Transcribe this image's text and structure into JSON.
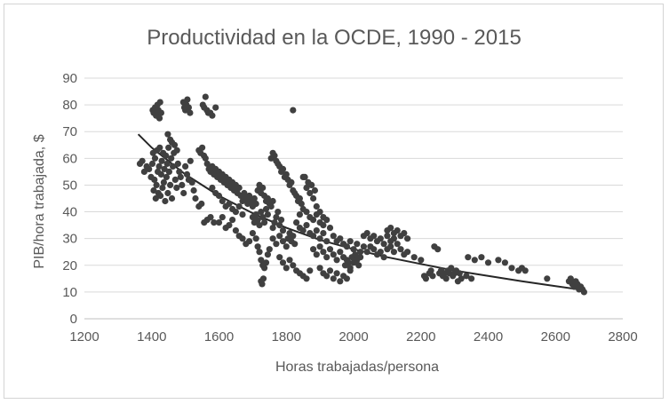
{
  "chart_data": {
    "type": "scatter",
    "title": "Productividad en la OCDE, 1990 - 2015",
    "xlabel": "Horas trabajadas/persona",
    "ylabel": "PIB/hora trabajada, $",
    "xlim": [
      1200,
      2800
    ],
    "ylim": [
      0,
      90
    ],
    "xticks": [
      1200,
      1400,
      1600,
      1800,
      2000,
      2200,
      2400,
      2600,
      2800
    ],
    "yticks": [
      0,
      10,
      20,
      30,
      40,
      50,
      60,
      70,
      80,
      90
    ],
    "grid": "horizontal",
    "legend": "none",
    "marker_color": "#404040",
    "trend_color": "#262626",
    "trendline": {
      "type": "power",
      "points": [
        [
          1360,
          69
        ],
        [
          1400,
          64
        ],
        [
          1500,
          54
        ],
        [
          1600,
          46
        ],
        [
          1700,
          39.5
        ],
        [
          1800,
          34
        ],
        [
          1900,
          29.5
        ],
        [
          2000,
          26
        ],
        [
          2100,
          23
        ],
        [
          2200,
          20.5
        ],
        [
          2300,
          18
        ],
        [
          2400,
          16
        ],
        [
          2500,
          14
        ],
        [
          2600,
          12.2
        ],
        [
          2680,
          10.8
        ]
      ]
    },
    "points": [
      [
        1365,
        58
      ],
      [
        1372,
        59
      ],
      [
        1378,
        55
      ],
      [
        1385,
        57
      ],
      [
        1392,
        56
      ],
      [
        1398,
        53
      ],
      [
        1402,
        58
      ],
      [
        1404,
        62
      ],
      [
        1406,
        48
      ],
      [
        1408,
        52
      ],
      [
        1410,
        60
      ],
      [
        1412,
        45
      ],
      [
        1414,
        50
      ],
      [
        1416,
        63
      ],
      [
        1418,
        55
      ],
      [
        1420,
        47
      ],
      [
        1422,
        57
      ],
      [
        1424,
        64
      ],
      [
        1426,
        46
      ],
      [
        1428,
        54
      ],
      [
        1430,
        59
      ],
      [
        1432,
        49
      ],
      [
        1434,
        62
      ],
      [
        1436,
        51
      ],
      [
        1438,
        56
      ],
      [
        1440,
        44
      ],
      [
        1442,
        61
      ],
      [
        1444,
        53
      ],
      [
        1446,
        58
      ],
      [
        1448,
        47
      ],
      [
        1450,
        64
      ],
      [
        1452,
        55
      ],
      [
        1455,
        50
      ],
      [
        1458,
        60
      ],
      [
        1460,
        45
      ],
      [
        1463,
        57
      ],
      [
        1466,
        62
      ],
      [
        1470,
        52
      ],
      [
        1474,
        49
      ],
      [
        1478,
        58
      ],
      [
        1482,
        55
      ],
      [
        1486,
        53
      ],
      [
        1490,
        50
      ],
      [
        1495,
        47
      ],
      [
        1500,
        57
      ],
      [
        1505,
        54
      ],
      [
        1510,
        52
      ],
      [
        1515,
        59
      ],
      [
        1520,
        51
      ],
      [
        1525,
        48
      ],
      [
        1403,
        78
      ],
      [
        1406,
        77
      ],
      [
        1410,
        79
      ],
      [
        1413,
        76
      ],
      [
        1417,
        80
      ],
      [
        1420,
        78
      ],
      [
        1423,
        75
      ],
      [
        1425,
        81
      ],
      [
        1428,
        77
      ],
      [
        1494,
        81
      ],
      [
        1497,
        79
      ],
      [
        1500,
        78
      ],
      [
        1503,
        80
      ],
      [
        1506,
        82
      ],
      [
        1510,
        79
      ],
      [
        1514,
        77
      ],
      [
        1552,
        80
      ],
      [
        1556,
        79
      ],
      [
        1560,
        83
      ],
      [
        1564,
        78
      ],
      [
        1568,
        77
      ],
      [
        1574,
        77
      ],
      [
        1580,
        76
      ],
      [
        1590,
        79
      ],
      [
        1820,
        78
      ],
      [
        1448,
        69
      ],
      [
        1455,
        67
      ],
      [
        1460,
        66
      ],
      [
        1468,
        65
      ],
      [
        1475,
        63
      ],
      [
        1540,
        63
      ],
      [
        1545,
        62
      ],
      [
        1550,
        64
      ],
      [
        1555,
        61
      ],
      [
        1560,
        60
      ],
      [
        1530,
        45
      ],
      [
        1540,
        42
      ],
      [
        1548,
        43
      ],
      [
        1556,
        36
      ],
      [
        1565,
        37
      ],
      [
        1575,
        38
      ],
      [
        1585,
        36
      ],
      [
        1565,
        58
      ],
      [
        1570,
        56
      ],
      [
        1575,
        55
      ],
      [
        1580,
        57
      ],
      [
        1585,
        54
      ],
      [
        1590,
        56
      ],
      [
        1595,
        53
      ],
      [
        1600,
        55
      ],
      [
        1605,
        52
      ],
      [
        1610,
        54
      ],
      [
        1615,
        51
      ],
      [
        1620,
        53
      ],
      [
        1625,
        50
      ],
      [
        1630,
        52
      ],
      [
        1635,
        49
      ],
      [
        1640,
        51
      ],
      [
        1645,
        48
      ],
      [
        1650,
        50
      ],
      [
        1655,
        47
      ],
      [
        1660,
        49
      ],
      [
        1580,
        49
      ],
      [
        1590,
        47
      ],
      [
        1600,
        46
      ],
      [
        1610,
        44
      ],
      [
        1620,
        42
      ],
      [
        1630,
        43
      ],
      [
        1640,
        41
      ],
      [
        1650,
        40
      ],
      [
        1660,
        42
      ],
      [
        1670,
        39
      ],
      [
        1600,
        36
      ],
      [
        1610,
        38
      ],
      [
        1620,
        34
      ],
      [
        1630,
        35
      ],
      [
        1640,
        37
      ],
      [
        1650,
        33
      ],
      [
        1660,
        31
      ],
      [
        1670,
        30
      ],
      [
        1680,
        28
      ],
      [
        1690,
        29
      ],
      [
        1665,
        46
      ],
      [
        1670,
        44
      ],
      [
        1675,
        47
      ],
      [
        1680,
        45
      ],
      [
        1685,
        43
      ],
      [
        1690,
        46
      ],
      [
        1695,
        44
      ],
      [
        1700,
        42
      ],
      [
        1705,
        45
      ],
      [
        1710,
        43
      ],
      [
        1700,
        38
      ],
      [
        1705,
        36
      ],
      [
        1710,
        39
      ],
      [
        1715,
        37
      ],
      [
        1720,
        35
      ],
      [
        1725,
        40
      ],
      [
        1730,
        38
      ],
      [
        1735,
        36
      ],
      [
        1740,
        41
      ],
      [
        1745,
        39
      ],
      [
        1715,
        48
      ],
      [
        1720,
        50
      ],
      [
        1725,
        47
      ],
      [
        1730,
        49
      ],
      [
        1735,
        46
      ],
      [
        1740,
        44
      ],
      [
        1745,
        45
      ],
      [
        1750,
        43
      ],
      [
        1755,
        42
      ],
      [
        1760,
        44
      ],
      [
        1700,
        32
      ],
      [
        1710,
        30
      ],
      [
        1715,
        27
      ],
      [
        1720,
        25
      ],
      [
        1725,
        22
      ],
      [
        1730,
        20
      ],
      [
        1735,
        19
      ],
      [
        1740,
        21
      ],
      [
        1745,
        24
      ],
      [
        1750,
        26
      ],
      [
        1725,
        14
      ],
      [
        1728,
        13
      ],
      [
        1732,
        15
      ],
      [
        1760,
        34
      ],
      [
        1765,
        36
      ],
      [
        1770,
        38
      ],
      [
        1775,
        40
      ],
      [
        1780,
        35
      ],
      [
        1785,
        37
      ],
      [
        1790,
        33
      ],
      [
        1755,
        60
      ],
      [
        1760,
        62
      ],
      [
        1765,
        61
      ],
      [
        1770,
        59
      ],
      [
        1775,
        58
      ],
      [
        1780,
        57
      ],
      [
        1785,
        55
      ],
      [
        1790,
        56
      ],
      [
        1795,
        53
      ],
      [
        1800,
        54
      ],
      [
        1805,
        52
      ],
      [
        1810,
        50
      ],
      [
        1815,
        51
      ],
      [
        1820,
        48
      ],
      [
        1825,
        47
      ],
      [
        1830,
        46
      ],
      [
        1835,
        44
      ],
      [
        1840,
        45
      ],
      [
        1845,
        43
      ],
      [
        1850,
        53
      ],
      [
        1760,
        30
      ],
      [
        1770,
        28
      ],
      [
        1780,
        31
      ],
      [
        1790,
        29
      ],
      [
        1800,
        27
      ],
      [
        1805,
        30
      ],
      [
        1810,
        32
      ],
      [
        1815,
        29
      ],
      [
        1820,
        31
      ],
      [
        1825,
        28
      ],
      [
        1780,
        23
      ],
      [
        1790,
        21
      ],
      [
        1800,
        19
      ],
      [
        1810,
        22
      ],
      [
        1820,
        20
      ],
      [
        1830,
        18
      ],
      [
        1840,
        17
      ],
      [
        1850,
        16
      ],
      [
        1860,
        15
      ],
      [
        1870,
        18
      ],
      [
        1830,
        36
      ],
      [
        1840,
        34
      ],
      [
        1850,
        33
      ],
      [
        1860,
        35
      ],
      [
        1870,
        32
      ],
      [
        1880,
        31
      ],
      [
        1890,
        33
      ],
      [
        1900,
        30
      ],
      [
        1910,
        32
      ],
      [
        1920,
        29
      ],
      [
        1840,
        39
      ],
      [
        1850,
        41
      ],
      [
        1860,
        40
      ],
      [
        1870,
        38
      ],
      [
        1880,
        37
      ],
      [
        1890,
        39
      ],
      [
        1900,
        36
      ],
      [
        1910,
        35
      ],
      [
        1920,
        37
      ],
      [
        1930,
        34
      ],
      [
        1860,
        49
      ],
      [
        1870,
        47
      ],
      [
        1880,
        45
      ],
      [
        1890,
        42
      ],
      [
        1900,
        40
      ],
      [
        1910,
        38
      ],
      [
        1855,
        53
      ],
      [
        1865,
        51
      ],
      [
        1875,
        50
      ],
      [
        1885,
        48
      ],
      [
        1880,
        26
      ],
      [
        1890,
        24
      ],
      [
        1900,
        27
      ],
      [
        1910,
        25
      ],
      [
        1920,
        23
      ],
      [
        1930,
        26
      ],
      [
        1940,
        24
      ],
      [
        1950,
        22
      ],
      [
        1960,
        25
      ],
      [
        1970,
        23
      ],
      [
        1900,
        19
      ],
      [
        1910,
        17
      ],
      [
        1920,
        16
      ],
      [
        1930,
        18
      ],
      [
        1940,
        15
      ],
      [
        1950,
        17
      ],
      [
        1960,
        14
      ],
      [
        1970,
        16
      ],
      [
        1980,
        15
      ],
      [
        1990,
        18
      ],
      [
        1940,
        31
      ],
      [
        1950,
        29
      ],
      [
        1960,
        30
      ],
      [
        1970,
        28
      ],
      [
        1980,
        27
      ],
      [
        1990,
        29
      ],
      [
        2000,
        26
      ],
      [
        2010,
        28
      ],
      [
        2020,
        25
      ],
      [
        2030,
        27
      ],
      [
        1975,
        20
      ],
      [
        1980,
        22
      ],
      [
        1985,
        21
      ],
      [
        1990,
        19
      ],
      [
        1995,
        23
      ],
      [
        2000,
        21
      ],
      [
        2005,
        24
      ],
      [
        2010,
        22
      ],
      [
        2015,
        20
      ],
      [
        2020,
        23
      ],
      [
        2030,
        31
      ],
      [
        2040,
        32
      ],
      [
        2050,
        30
      ],
      [
        2060,
        31
      ],
      [
        2070,
        29
      ],
      [
        2080,
        30
      ],
      [
        2090,
        28
      ],
      [
        2100,
        31
      ],
      [
        2110,
        29
      ],
      [
        2120,
        30
      ],
      [
        2040,
        25
      ],
      [
        2050,
        27
      ],
      [
        2060,
        26
      ],
      [
        2070,
        24
      ],
      [
        2080,
        25
      ],
      [
        2090,
        23
      ],
      [
        2100,
        26
      ],
      [
        2110,
        27
      ],
      [
        2120,
        25
      ],
      [
        2130,
        28
      ],
      [
        2100,
        33
      ],
      [
        2110,
        34
      ],
      [
        2120,
        32
      ],
      [
        2130,
        33
      ],
      [
        2140,
        31
      ],
      [
        2150,
        32
      ],
      [
        2160,
        30
      ],
      [
        2140,
        26
      ],
      [
        2150,
        24
      ],
      [
        2160,
        25
      ],
      [
        2180,
        23
      ],
      [
        2200,
        22
      ],
      [
        2210,
        16
      ],
      [
        2215,
        15
      ],
      [
        2225,
        17
      ],
      [
        2230,
        18
      ],
      [
        2235,
        16
      ],
      [
        2240,
        27
      ],
      [
        2250,
        26
      ],
      [
        2255,
        17
      ],
      [
        2260,
        18
      ],
      [
        2265,
        16
      ],
      [
        2270,
        17
      ],
      [
        2275,
        15
      ],
      [
        2280,
        18
      ],
      [
        2285,
        17
      ],
      [
        2290,
        19
      ],
      [
        2295,
        16
      ],
      [
        2300,
        17
      ],
      [
        2305,
        18
      ],
      [
        2310,
        14
      ],
      [
        2315,
        17
      ],
      [
        2320,
        15
      ],
      [
        2335,
        16
      ],
      [
        2350,
        15
      ],
      [
        2340,
        23
      ],
      [
        2360,
        22
      ],
      [
        2380,
        23
      ],
      [
        2400,
        21
      ],
      [
        2430,
        22
      ],
      [
        2450,
        21
      ],
      [
        2470,
        19
      ],
      [
        2490,
        18
      ],
      [
        2500,
        19
      ],
      [
        2510,
        18
      ],
      [
        2575,
        15
      ],
      [
        2640,
        14
      ],
      [
        2645,
        15
      ],
      [
        2650,
        13
      ],
      [
        2655,
        12
      ],
      [
        2660,
        14
      ],
      [
        2665,
        13
      ],
      [
        2670,
        11
      ],
      [
        2675,
        12
      ],
      [
        2680,
        11
      ],
      [
        2685,
        10
      ]
    ]
  }
}
